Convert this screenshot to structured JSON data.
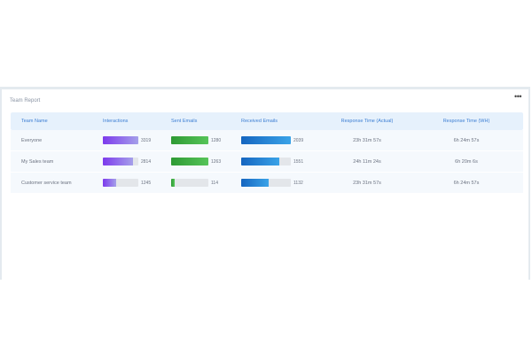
{
  "report": {
    "title": "Team Report",
    "more_icon": "more-horizontal-icon",
    "headers": [
      "Team Name",
      "Interactions",
      "Sent Emails",
      "Received Emails",
      "Response Time (Actual)",
      "Response Time (WH)"
    ],
    "rows": [
      {
        "team": "Everyone",
        "interactions": 3319,
        "interactions_fraction": 1.0,
        "sent": 1280,
        "sent_fraction": 1.0,
        "received": 2039,
        "received_fraction": 1.0,
        "rt_actual": "23h 31m 57s",
        "rt_wh": "6h 24m 57s"
      },
      {
        "team": "My Sales team",
        "interactions": 2814,
        "interactions_fraction": 0.85,
        "sent": 1263,
        "sent_fraction": 0.99,
        "received": 1551,
        "received_fraction": 0.76,
        "rt_actual": "24h 11m 24s",
        "rt_wh": "6h 20m 6s"
      },
      {
        "team": "Customer service team",
        "interactions": 1245,
        "interactions_fraction": 0.38,
        "sent": 114,
        "sent_fraction": 0.09,
        "received": 1132,
        "received_fraction": 0.56,
        "rt_actual": "23h 31m 57s",
        "rt_wh": "6h 24m 57s"
      }
    ]
  },
  "colors": {
    "interactions": "#7c3aed",
    "sent": "#2e9a34",
    "received": "#1976d2",
    "header_text": "#3c7ed3"
  }
}
